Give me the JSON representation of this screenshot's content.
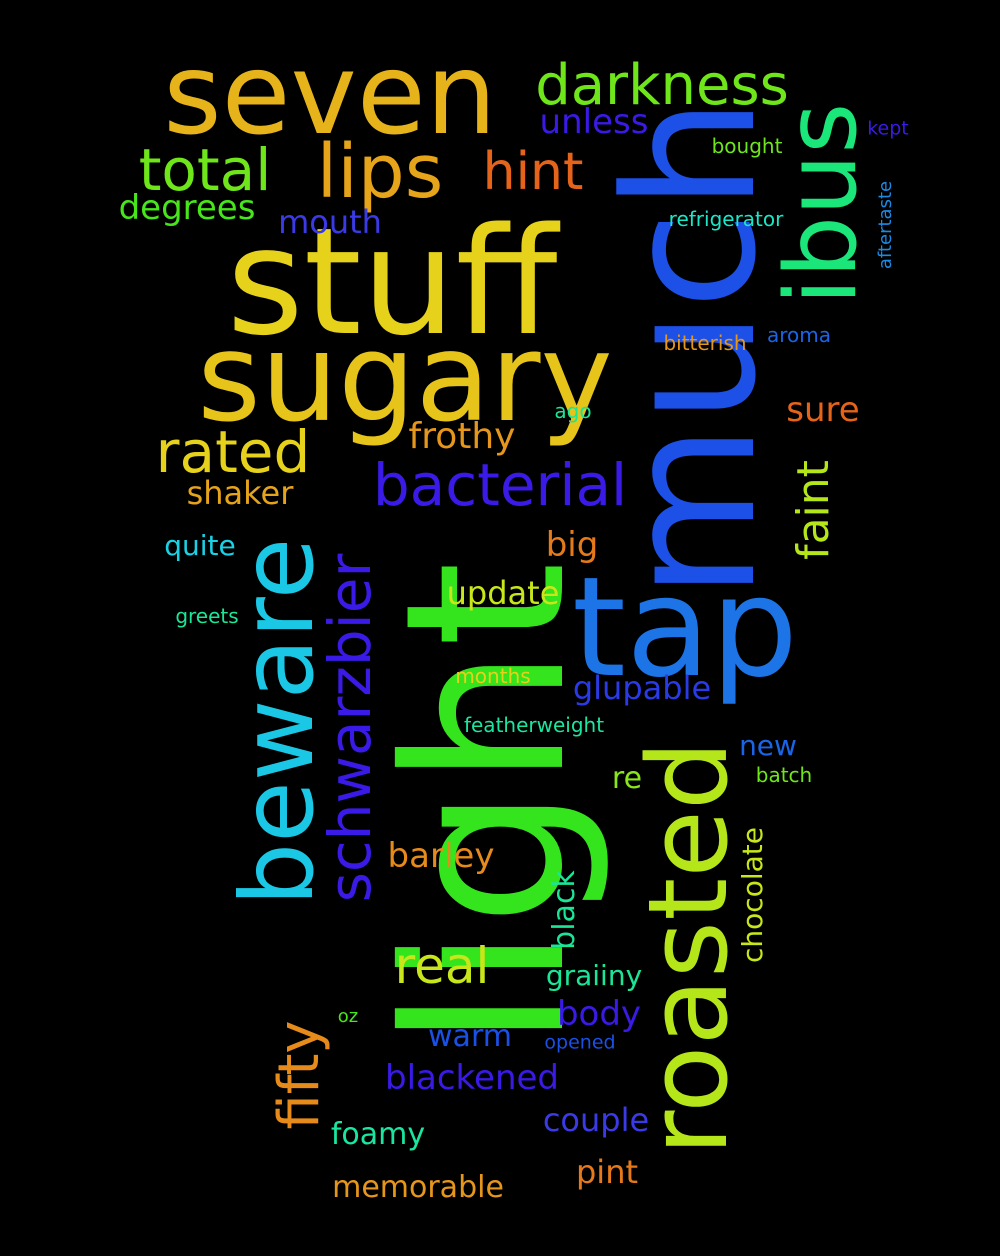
{
  "words": [
    {
      "text": "stuff",
      "color": "#e6d21a"
    },
    {
      "text": "light",
      "color": "#34e41c"
    },
    {
      "text": "much",
      "color": "#1c50e6"
    },
    {
      "text": "sugary",
      "color": "#e6c41a"
    },
    {
      "text": "seven",
      "color": "#e6b41a"
    },
    {
      "text": "tap",
      "color": "#1c74e6"
    },
    {
      "text": "roasted",
      "color": "#b4e61a"
    },
    {
      "text": "beware",
      "color": "#1ac8e6"
    },
    {
      "text": "ibus",
      "color": "#1ae67a"
    },
    {
      "text": "lips",
      "color": "#e6a41a"
    },
    {
      "text": "darkness",
      "color": "#6ee61a"
    },
    {
      "text": "total",
      "color": "#6ee61a"
    },
    {
      "text": "hint",
      "color": "#e6641a"
    },
    {
      "text": "bacterial",
      "color": "#3a1ae6"
    },
    {
      "text": "schwarzbier",
      "color": "#3a1ae6"
    },
    {
      "text": "rated",
      "color": "#e6d21a"
    },
    {
      "text": "fifty",
      "color": "#e68a1a"
    },
    {
      "text": "faint",
      "color": "#b4e61a"
    },
    {
      "text": "real",
      "color": "#c8e61a"
    },
    {
      "text": "unless",
      "color": "#3a1ae6"
    },
    {
      "text": "degrees",
      "color": "#46e61a"
    },
    {
      "text": "mouth",
      "color": "#3a3ae6"
    },
    {
      "text": "frothy",
      "color": "#e6961a"
    },
    {
      "text": "shaker",
      "color": "#e6a41a"
    },
    {
      "text": "sure",
      "color": "#e6641a"
    },
    {
      "text": "big",
      "color": "#e67a1a"
    },
    {
      "text": "quite",
      "color": "#1ad2e6"
    },
    {
      "text": "update",
      "color": "#c8e61a"
    },
    {
      "text": "glupable",
      "color": "#2a3ae6"
    },
    {
      "text": "barley",
      "color": "#e68a1a"
    },
    {
      "text": "black",
      "color": "#1ae696"
    },
    {
      "text": "chocolate",
      "color": "#c8e61a"
    },
    {
      "text": "new",
      "color": "#1a64e6"
    },
    {
      "text": "re",
      "color": "#8ae61a"
    },
    {
      "text": "graiiny",
      "color": "#1ae696"
    },
    {
      "text": "body",
      "color": "#3a1ae6"
    },
    {
      "text": "warm",
      "color": "#1a50e6"
    },
    {
      "text": "blackened",
      "color": "#3a1ae6"
    },
    {
      "text": "couple",
      "color": "#3a3ae6"
    },
    {
      "text": "foamy",
      "color": "#1ae6a0"
    },
    {
      "text": "pint",
      "color": "#e67a1a"
    },
    {
      "text": "memorable",
      "color": "#e6961a"
    },
    {
      "text": "bought",
      "color": "#6ee61a"
    },
    {
      "text": "refrigerator",
      "color": "#1ae6c8"
    },
    {
      "text": "kept",
      "color": "#3a1ae6"
    },
    {
      "text": "aftertaste",
      "color": "#1a8ae6"
    },
    {
      "text": "bitterish",
      "color": "#e6961a"
    },
    {
      "text": "aroma",
      "color": "#1a64e6"
    },
    {
      "text": "ago",
      "color": "#1ae696"
    },
    {
      "text": "greets",
      "color": "#1ae696"
    },
    {
      "text": "months",
      "color": "#e6d21a"
    },
    {
      "text": "featherweight",
      "color": "#1ae6a0"
    },
    {
      "text": "batch",
      "color": "#6ee61a"
    },
    {
      "text": "oz",
      "color": "#46e61a"
    },
    {
      "text": "opened",
      "color": "#1a50e6"
    }
  ]
}
